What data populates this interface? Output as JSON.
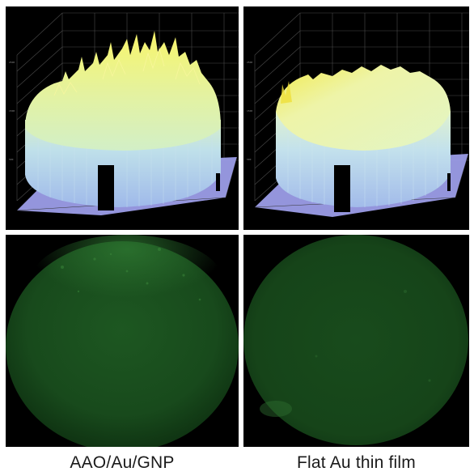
{
  "figure": {
    "caption_left": "AAO/Au/GNP",
    "caption_right": "Flat Au thin film"
  },
  "panels": [
    {
      "id": "surface-plot-aao-au-gnp",
      "kind": "3d-intensity-surface-plot",
      "palette": [
        "#f6f46e",
        "#d9f0b4",
        "#b9d6ec",
        "#9aa0e6"
      ]
    },
    {
      "id": "surface-plot-flat-au",
      "kind": "3d-intensity-surface-plot",
      "palette": [
        "#f3ef5f",
        "#e6f5b8",
        "#bcd8ee",
        "#9aa0e6"
      ]
    },
    {
      "id": "fluorescence-image-aao-au-gnp",
      "kind": "green-fluorescence-micrograph",
      "color": "#1e5a23"
    },
    {
      "id": "fluorescence-image-flat-au",
      "kind": "green-fluorescence-micrograph",
      "color": "#1a4d1f"
    }
  ]
}
